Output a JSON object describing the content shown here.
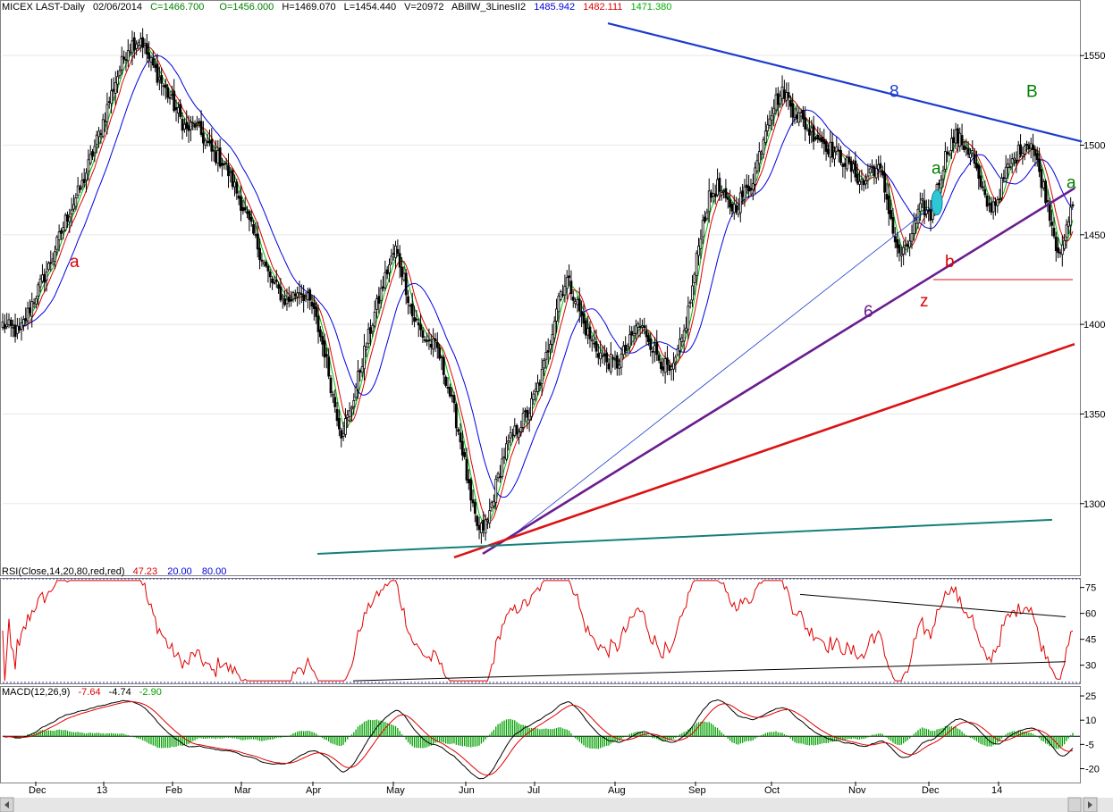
{
  "header": {
    "symbol": "MICEX LAST-Daily",
    "date": "02/06/2014",
    "close": "C=1466.700",
    "open": "O=1456.000",
    "high": "H=1469.070",
    "low": "L=1454.440",
    "volume": "V=20972",
    "indicator": "ABillW_3LinesII2",
    "ind_v1": "1485.942",
    "ind_v2": "1482.111",
    "ind_v3": "1471.380"
  },
  "rsi_header": {
    "label": "RSI(Close,14,20,80,red,red)",
    "value": "47.23",
    "low": "20.00",
    "high": "80.00"
  },
  "macd_header": {
    "label": "MACD(12,26,9)",
    "v1": "-7.64",
    "v2": "-4.74",
    "v3": "-2.90"
  },
  "colors": {
    "up": "#ffffff",
    "down": "#000000",
    "ma_fast": "#00c000",
    "ma_mid": "#e00000",
    "ma_slow": "#0000e0",
    "rsi": "#e00000",
    "macd": "#000000",
    "signal": "#e00000",
    "hist": "#00a000",
    "trend_blue": "#1a3ccc",
    "trend_purple": "#6a1d8f",
    "trend_red": "#dd1111",
    "trend_teal": "#14807a"
  },
  "chart_data": [
    {
      "type": "candlestick",
      "name": "price",
      "ylim": [
        1263,
        1578
      ],
      "yticks": [
        1300,
        1350,
        1400,
        1450,
        1500,
        1550
      ],
      "x_labels": [
        "Dec",
        "13",
        "Feb",
        "Mar",
        "Apr",
        "May",
        "Jun",
        "Jul",
        "Aug",
        "Sep",
        "Oct",
        "Nov",
        "Dec",
        "14"
      ],
      "keyframes": [
        [
          0,
          1400
        ],
        [
          8,
          1395
        ],
        [
          14,
          1412
        ],
        [
          22,
          1432
        ],
        [
          30,
          1458
        ],
        [
          38,
          1478
        ],
        [
          46,
          1506
        ],
        [
          54,
          1536
        ],
        [
          60,
          1555
        ],
        [
          66,
          1560
        ],
        [
          70,
          1548
        ],
        [
          76,
          1535
        ],
        [
          82,
          1522
        ],
        [
          88,
          1508
        ],
        [
          92,
          1512
        ],
        [
          100,
          1496
        ],
        [
          106,
          1490
        ],
        [
          112,
          1474
        ],
        [
          120,
          1450
        ],
        [
          128,
          1425
        ],
        [
          136,
          1412
        ],
        [
          142,
          1420
        ],
        [
          148,
          1410
        ],
        [
          154,
          1385
        ],
        [
          158,
          1360
        ],
        [
          162,
          1340
        ],
        [
          166,
          1350
        ],
        [
          172,
          1380
        ],
        [
          178,
          1406
        ],
        [
          184,
          1430
        ],
        [
          188,
          1442
        ],
        [
          192,
          1426
        ],
        [
          196,
          1405
        ],
        [
          202,
          1392
        ],
        [
          208,
          1386
        ],
        [
          212,
          1370
        ],
        [
          216,
          1352
        ],
        [
          220,
          1330
        ],
        [
          224,
          1300
        ],
        [
          228,
          1284
        ],
        [
          232,
          1290
        ],
        [
          236,
          1310
        ],
        [
          240,
          1328
        ],
        [
          244,
          1338
        ],
        [
          248,
          1345
        ],
        [
          252,
          1352
        ],
        [
          258,
          1372
        ],
        [
          262,
          1392
        ],
        [
          266,
          1416
        ],
        [
          270,
          1425
        ],
        [
          274,
          1415
        ],
        [
          278,
          1400
        ],
        [
          282,
          1390
        ],
        [
          288,
          1380
        ],
        [
          294,
          1378
        ],
        [
          300,
          1390
        ],
        [
          304,
          1400
        ],
        [
          308,
          1395
        ],
        [
          312,
          1385
        ],
        [
          316,
          1378
        ],
        [
          320,
          1372
        ],
        [
          326,
          1395
        ],
        [
          330,
          1420
        ],
        [
          334,
          1452
        ],
        [
          338,
          1470
        ],
        [
          342,
          1477
        ],
        [
          346,
          1468
        ],
        [
          350,
          1465
        ],
        [
          354,
          1472
        ],
        [
          358,
          1478
        ],
        [
          362,
          1495
        ],
        [
          366,
          1515
        ],
        [
          370,
          1525
        ],
        [
          374,
          1530
        ],
        [
          378,
          1520
        ],
        [
          382,
          1515
        ],
        [
          386,
          1508
        ],
        [
          390,
          1505
        ],
        [
          396,
          1498
        ],
        [
          402,
          1492
        ],
        [
          408,
          1484
        ],
        [
          412,
          1478
        ],
        [
          416,
          1488
        ],
        [
          420,
          1485
        ],
        [
          424,
          1465
        ],
        [
          428,
          1440
        ],
        [
          432,
          1440
        ],
        [
          436,
          1455
        ],
        [
          440,
          1466
        ],
        [
          444,
          1460
        ],
        [
          448,
          1480
        ],
        [
          452,
          1498
        ],
        [
          456,
          1505
        ],
        [
          460,
          1500
        ],
        [
          464,
          1495
        ],
        [
          468,
          1475
        ],
        [
          472,
          1465
        ],
        [
          476,
          1470
        ],
        [
          480,
          1485
        ],
        [
          484,
          1492
        ],
        [
          488,
          1500
        ],
        [
          492,
          1502
        ],
        [
          496,
          1485
        ],
        [
          500,
          1468
        ],
        [
          504,
          1445
        ],
        [
          507,
          1440
        ],
        [
          510,
          1458
        ],
        [
          512,
          1466
        ]
      ],
      "ma_periods": [
        5,
        8,
        20
      ],
      "labels": [
        {
          "text": "a",
          "x": 78,
          "y": 1432,
          "color": "#e00000"
        },
        {
          "text": "8",
          "x": 995,
          "y": 1527,
          "color": "#1a3ccc"
        },
        {
          "text": "B",
          "x": 1148,
          "y": 1527,
          "color": "#008000"
        },
        {
          "text": "a",
          "x": 1042,
          "y": 1484,
          "color": "#008000"
        },
        {
          "text": "a",
          "x": 1193,
          "y": 1476,
          "color": "#008000"
        },
        {
          "text": "b",
          "x": 1057,
          "y": 1432,
          "color": "#e00000"
        },
        {
          "text": "6",
          "x": 966,
          "y": 1404,
          "color": "#6a1d8f"
        },
        {
          "text": "z",
          "x": 1029,
          "y": 1410,
          "color": "#e00000"
        }
      ],
      "trendlines": [
        {
          "x1": 680,
          "y1": 1568,
          "x2": 1210,
          "y2": 1502,
          "color": "#1a3ccc",
          "width": 2.2
        },
        {
          "x1": 540,
          "y1": 1272,
          "x2": 1202,
          "y2": 1476,
          "color": "#6a1d8f",
          "width": 2.6
        },
        {
          "x1": 570,
          "y1": 1281,
          "x2": 1048,
          "y2": 1468,
          "color": "#1a3ccc",
          "width": 0.8
        },
        {
          "x1": 508,
          "y1": 1270,
          "x2": 1202,
          "y2": 1389,
          "color": "#dd1111",
          "width": 2.6
        },
        {
          "x1": 355,
          "y1": 1272,
          "x2": 1177,
          "y2": 1291,
          "color": "#14807a",
          "width": 2
        },
        {
          "x1": 1044,
          "y1": 1425,
          "x2": 1200,
          "y2": 1425,
          "color": "#dd1111",
          "width": 1
        }
      ]
    },
    {
      "type": "line",
      "name": "rsi",
      "ylim": [
        20,
        80
      ],
      "yticks": [
        30,
        45,
        60,
        75
      ],
      "trendlines": [
        {
          "x1": 895,
          "y1": 71,
          "x2": 1192,
          "y2": 58,
          "color": "#000000",
          "width": 1
        },
        {
          "x1": 395,
          "y1": 21,
          "x2": 1192,
          "y2": 32,
          "color": "#000000",
          "width": 1
        }
      ]
    },
    {
      "type": "line",
      "name": "macd",
      "ylim": [
        -28,
        30
      ],
      "yticks": [
        -20,
        -5,
        10,
        25
      ],
      "zero": 0
    }
  ]
}
